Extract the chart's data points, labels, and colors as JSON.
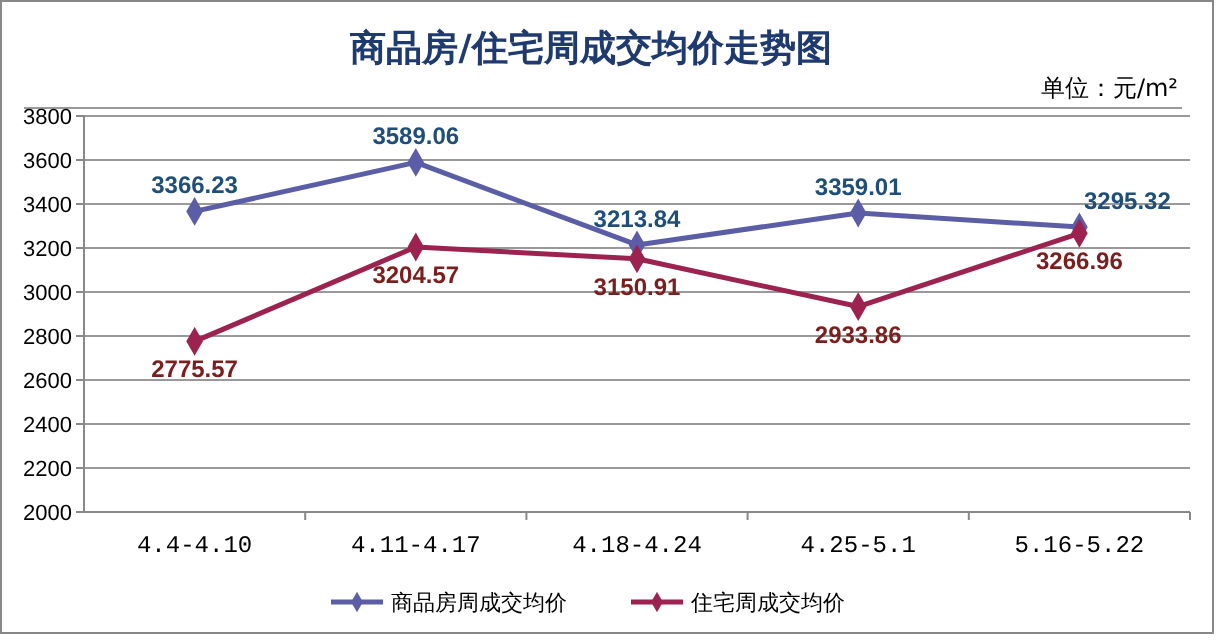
{
  "chart_data": {
    "type": "line",
    "title": "商品房/住宅周成交均价走势图",
    "annotations": [
      "单位：元/m²"
    ],
    "categories": [
      "4.4-4.10",
      "4.11-4.17",
      "4.18-4.24",
      "4.25-5.1",
      "5.16-5.22"
    ],
    "series": [
      {
        "name": "商品房周成交均价",
        "color": "#5b5ea6",
        "values": [
          3366.23,
          3589.06,
          3213.84,
          3359.01,
          3295.32
        ]
      },
      {
        "name": "住宅周成交均价",
        "color": "#9c2350",
        "values": [
          2775.57,
          3204.57,
          3150.91,
          2933.86,
          3266.96
        ]
      }
    ],
    "ylim": [
      2000,
      3800
    ],
    "yticks": [
      2000,
      2200,
      2400,
      2600,
      2800,
      3000,
      3200,
      3400,
      3600,
      3800
    ],
    "grid": "y",
    "legend": "bottom",
    "marker": "diamond",
    "data_labels": true
  }
}
